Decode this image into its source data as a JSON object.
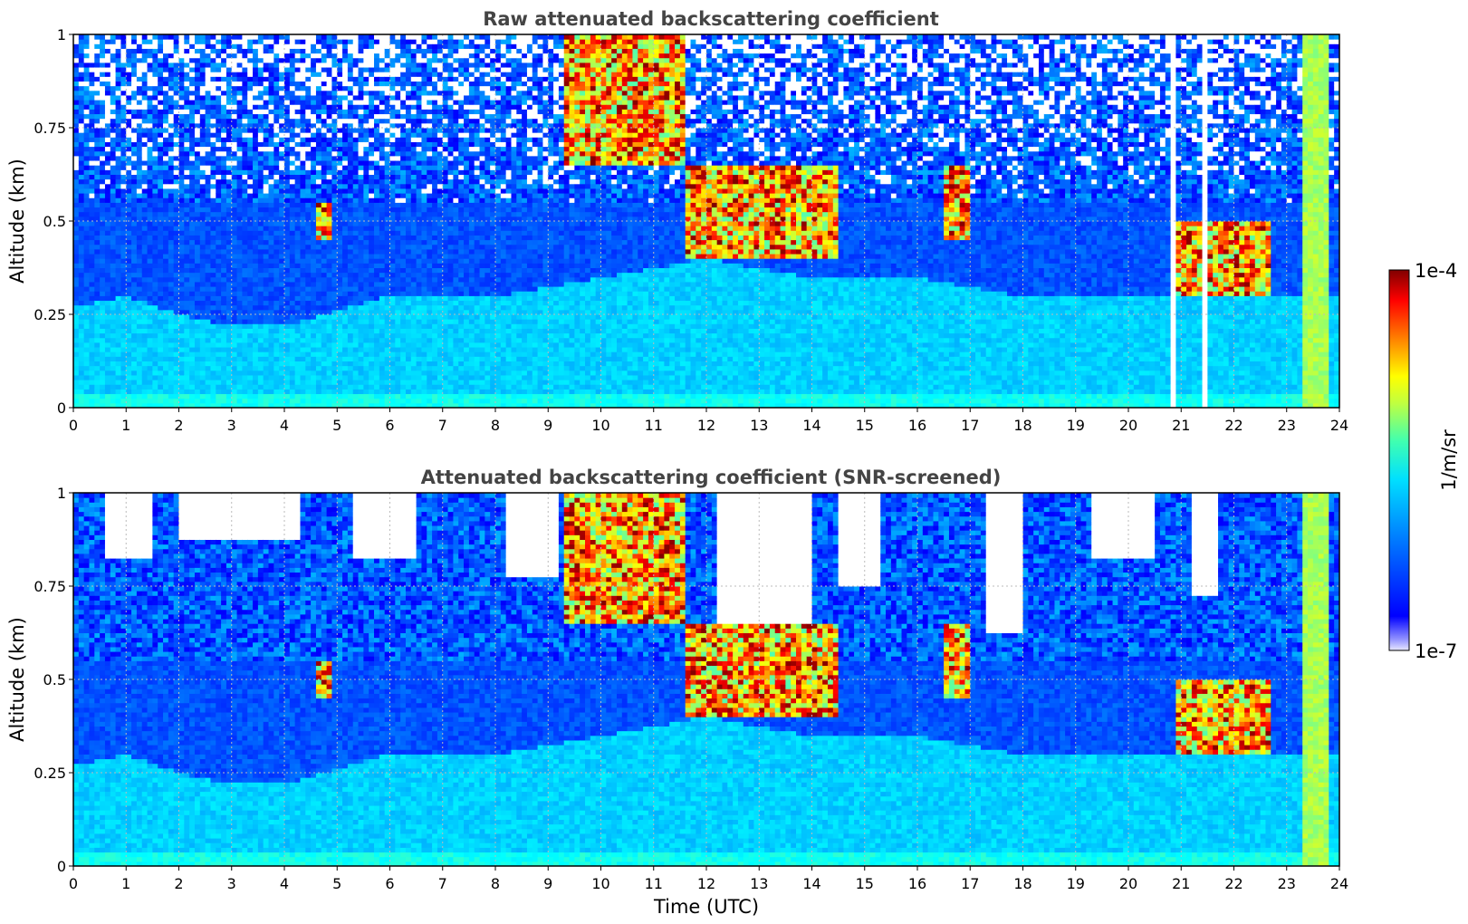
{
  "chart_data": [
    {
      "type": "heatmap",
      "title": "Raw attenuated backscattering coefficient",
      "xlabel": "",
      "ylabel": "Altitude (km)",
      "xlim": [
        0,
        24
      ],
      "ylim": [
        0,
        1
      ],
      "x_ticks": [
        "0",
        "1",
        "2",
        "3",
        "4",
        "5",
        "6",
        "7",
        "8",
        "9",
        "10",
        "11",
        "12",
        "13",
        "14",
        "15",
        "16",
        "17",
        "18",
        "19",
        "20",
        "21",
        "22",
        "23",
        "24"
      ],
      "y_ticks": [
        "0",
        "0.25",
        "0.5",
        "0.75",
        "1"
      ],
      "grid": true,
      "colormap": "jet",
      "color_scale": "log",
      "noise_above_km": 0.55,
      "boundary_layer_top_km": [
        [
          0,
          0.27
        ],
        [
          1,
          0.3
        ],
        [
          2,
          0.25
        ],
        [
          3,
          0.22
        ],
        [
          4,
          0.22
        ],
        [
          6,
          0.3
        ],
        [
          8,
          0.3
        ],
        [
          10,
          0.35
        ],
        [
          12,
          0.4
        ],
        [
          14,
          0.35
        ],
        [
          16,
          0.35
        ],
        [
          18,
          0.3
        ],
        [
          20,
          0.3
        ],
        [
          22,
          0.3
        ],
        [
          24,
          0.3
        ]
      ],
      "cloud_features": [
        {
          "time_utc": [
            9.3,
            11.6
          ],
          "altitude_km": [
            0.65,
            1.0
          ],
          "level": "high"
        },
        {
          "time_utc": [
            11.6,
            14.5
          ],
          "altitude_km": [
            0.4,
            0.65
          ],
          "level": "high"
        },
        {
          "time_utc": [
            4.6,
            4.9
          ],
          "altitude_km": [
            0.45,
            0.55
          ],
          "level": "high"
        },
        {
          "time_utc": [
            16.5,
            17.0
          ],
          "altitude_km": [
            0.45,
            0.65
          ],
          "level": "high"
        },
        {
          "time_utc": [
            20.9,
            22.7
          ],
          "altitude_km": [
            0.3,
            0.5
          ],
          "level": "high"
        },
        {
          "time_utc": [
            23.3,
            23.8
          ],
          "altitude_km": [
            0.0,
            1.0
          ],
          "level": "saturated"
        }
      ],
      "missing_profiles_utc": [
        20.9,
        21.4,
        21.5
      ]
    },
    {
      "type": "heatmap",
      "title": "Attenuated backscattering coefficient (SNR-screened)",
      "xlabel": "Time (UTC)",
      "ylabel": "Altitude (km)",
      "xlim": [
        0,
        24
      ],
      "ylim": [
        0,
        1
      ],
      "x_ticks": [
        "0",
        "1",
        "2",
        "3",
        "4",
        "5",
        "6",
        "7",
        "8",
        "9",
        "10",
        "11",
        "12",
        "13",
        "14",
        "15",
        "16",
        "17",
        "18",
        "19",
        "20",
        "21",
        "22",
        "23",
        "24"
      ],
      "y_ticks": [
        "0",
        "0.25",
        "0.5",
        "0.75",
        "1"
      ],
      "grid": true,
      "colormap": "jet",
      "color_scale": "log",
      "screened_regions": [
        {
          "time_utc": [
            0.6,
            1.5
          ],
          "altitude_km": [
            0.82,
            1.0
          ]
        },
        {
          "time_utc": [
            2.0,
            4.3
          ],
          "altitude_km": [
            0.88,
            1.0
          ]
        },
        {
          "time_utc": [
            5.3,
            6.5
          ],
          "altitude_km": [
            0.82,
            1.0
          ]
        },
        {
          "time_utc": [
            8.2,
            9.2
          ],
          "altitude_km": [
            0.78,
            1.0
          ]
        },
        {
          "time_utc": [
            12.2,
            14.0
          ],
          "altitude_km": [
            0.58,
            1.0
          ]
        },
        {
          "time_utc": [
            14.5,
            15.3
          ],
          "altitude_km": [
            0.75,
            1.0
          ]
        },
        {
          "time_utc": [
            17.3,
            18.0
          ],
          "altitude_km": [
            0.62,
            1.0
          ]
        },
        {
          "time_utc": [
            19.3,
            20.5
          ],
          "altitude_km": [
            0.82,
            1.0
          ]
        },
        {
          "time_utc": [
            21.2,
            21.7
          ],
          "altitude_km": [
            0.72,
            1.0
          ]
        }
      ],
      "cloud_features": [
        {
          "time_utc": [
            9.3,
            11.6
          ],
          "altitude_km": [
            0.65,
            1.0
          ],
          "level": "high"
        },
        {
          "time_utc": [
            11.6,
            14.5
          ],
          "altitude_km": [
            0.4,
            0.65
          ],
          "level": "high"
        },
        {
          "time_utc": [
            4.6,
            4.9
          ],
          "altitude_km": [
            0.45,
            0.55
          ],
          "level": "high"
        },
        {
          "time_utc": [
            16.5,
            17.0
          ],
          "altitude_km": [
            0.45,
            0.65
          ],
          "level": "high"
        },
        {
          "time_utc": [
            20.9,
            22.7
          ],
          "altitude_km": [
            0.3,
            0.5
          ],
          "level": "high"
        },
        {
          "time_utc": [
            23.3,
            23.8
          ],
          "altitude_km": [
            0.0,
            1.0
          ],
          "level": "saturated"
        }
      ]
    }
  ],
  "colorbar": {
    "label": "1/m/sr",
    "max_label": "1e-4",
    "min_label": "1e-7",
    "colormap": "jet"
  }
}
